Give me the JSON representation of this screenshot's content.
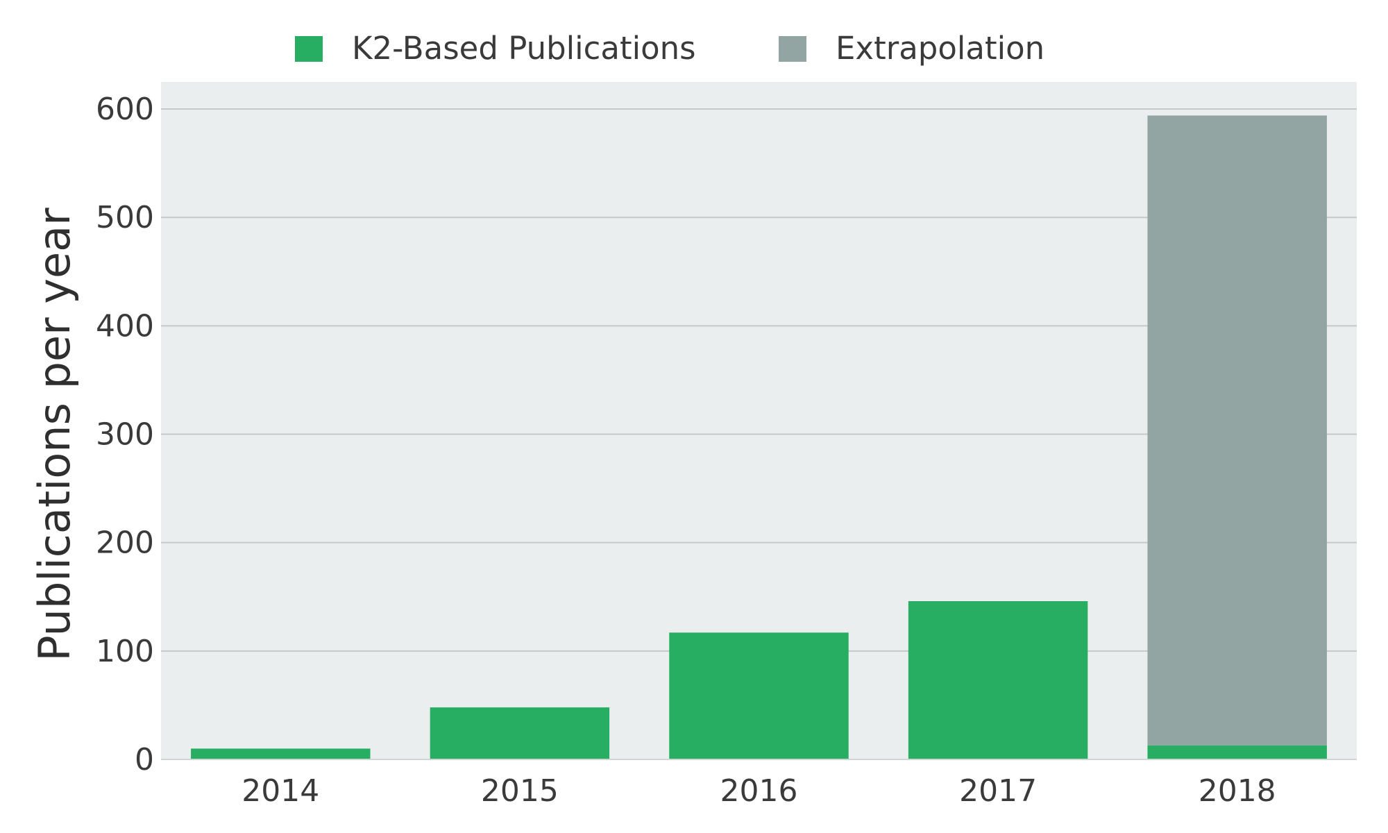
{
  "chart_data": {
    "type": "bar",
    "stacked": true,
    "categories": [
      "2014",
      "2015",
      "2016",
      "2017",
      "2018"
    ],
    "series": [
      {
        "name": "K2-Based Publications",
        "color": "#28ae62",
        "values": [
          10,
          48,
          117,
          146,
          13
        ]
      },
      {
        "name": "Extrapolation",
        "color": "#93a5a3",
        "values": [
          0,
          0,
          0,
          0,
          581
        ]
      }
    ],
    "title": "",
    "xlabel": "",
    "ylabel": "Publications per year",
    "ylim": [
      0,
      625
    ],
    "yticks": [
      0,
      100,
      200,
      300,
      400,
      500,
      600
    ],
    "ytick_labels": [
      "0",
      "100",
      "200",
      "300",
      "400",
      "500",
      "600"
    ],
    "grid": true,
    "legend_position": "top-center",
    "plot_background": "#eaeeee",
    "grid_color": "#c3c9c9"
  }
}
